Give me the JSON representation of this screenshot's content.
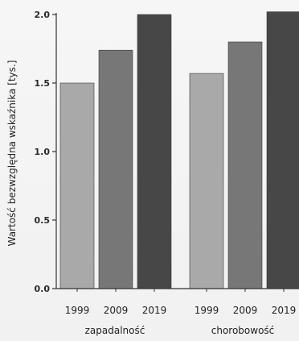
{
  "chart_data": {
    "type": "bar",
    "ylabel": "Wartość bezwzględna wskaźnika  [tys.]",
    "ylim": [
      0,
      2.0
    ],
    "yticks": [
      "0.0",
      "0.5",
      "1.0",
      "1.5",
      "2.0"
    ],
    "grid": false,
    "groups": [
      {
        "label": "zapadalność",
        "categories": [
          "1999",
          "2009",
          "2019"
        ],
        "values": [
          1.5,
          1.74,
          2.0
        ]
      },
      {
        "label": "chorobowość",
        "categories": [
          "1999",
          "2009",
          "2019"
        ],
        "values": [
          1.57,
          1.8,
          2.02
        ]
      }
    ],
    "bar_colors": [
      "#a9a9a9",
      "#777777",
      "#474747"
    ]
  }
}
